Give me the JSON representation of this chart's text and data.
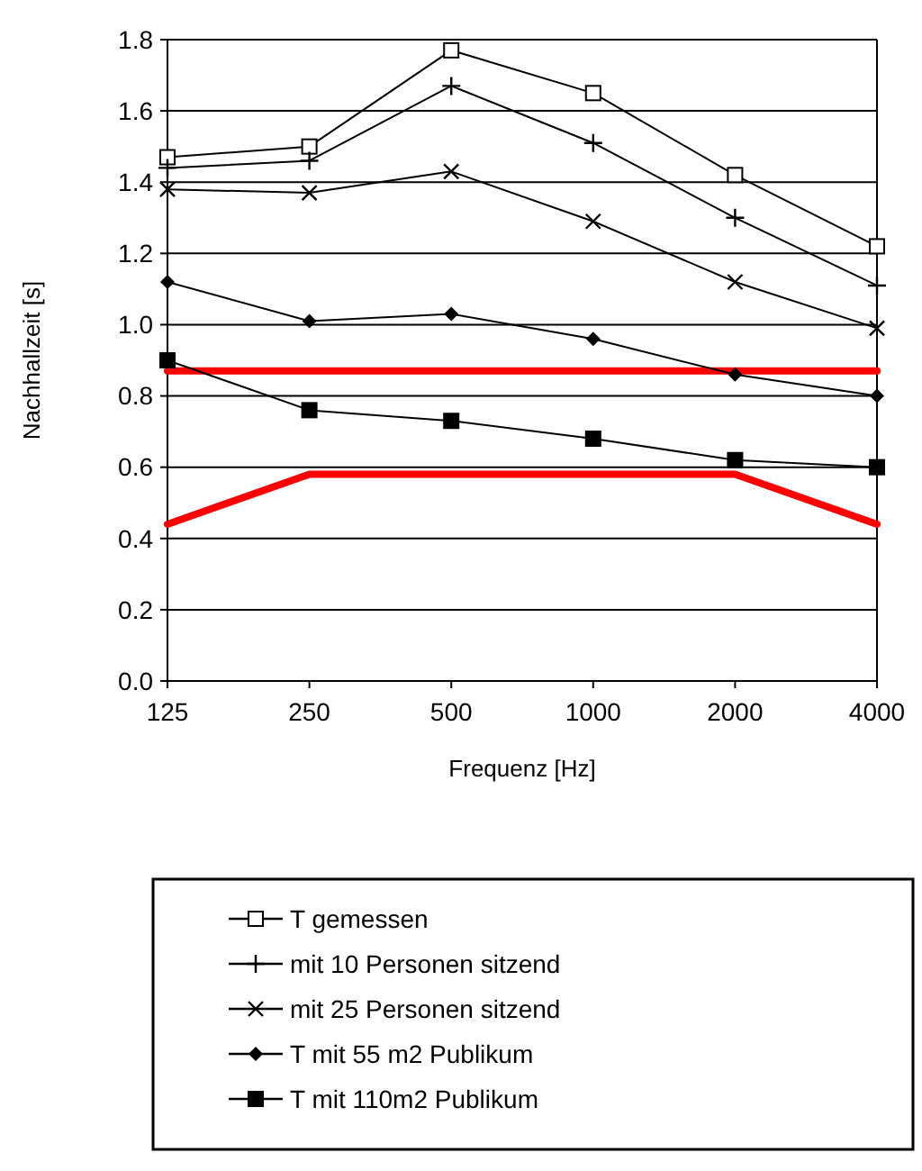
{
  "chart_data": {
    "type": "line",
    "xlabel": "Frequenz [Hz]",
    "ylabel": "Nachhallzeit [s]",
    "categories": [
      "125",
      "250",
      "500",
      "1000",
      "2000",
      "4000"
    ],
    "ylim": [
      0,
      1.8
    ],
    "yticks": [
      {
        "value": 0,
        "label": "0.0"
      },
      0.2,
      0.4,
      0.6,
      0.8,
      {
        "value": 1,
        "label": "1.0"
      },
      1.2,
      1.4,
      1.6,
      1.8
    ],
    "grid": "y",
    "legend": "bottom",
    "series": [
      {
        "name": "T gemessen",
        "color": "#000000",
        "marker": "square",
        "values": [
          1.47,
          1.5,
          1.77,
          1.65,
          1.42,
          1.22
        ]
      },
      {
        "name": "mit 10 Personen sitzend",
        "color": "#000000",
        "marker": "cross",
        "values": [
          1.44,
          1.46,
          1.67,
          1.51,
          1.3,
          1.11
        ]
      },
      {
        "name": "mit 25 Personen sitzend",
        "color": "#000000",
        "marker": "x",
        "values": [
          1.38,
          1.37,
          1.43,
          1.29,
          1.12,
          0.99
        ]
      },
      {
        "name": "T mit 55 m2 Publikum",
        "color": "#000000",
        "marker": "diamond",
        "values": [
          1.12,
          1.01,
          1.03,
          0.96,
          0.86,
          0.8
        ]
      },
      {
        "name": "T mit 110m2 Publikum",
        "color": "#000000",
        "marker": "square",
        "values": [
          0.9,
          0.76,
          0.73,
          0.68,
          0.62,
          0.6
        ]
      },
      {
        "color": "#ff0000",
        "marker": "none",
        "values": [
          0.87,
          0.87,
          0.87,
          0.87,
          0.87,
          0.87
        ]
      },
      {
        "color": "#ff0000",
        "marker": "none",
        "values": [
          0.44,
          0.58,
          0.58,
          0.58,
          0.58,
          0.44
        ]
      }
    ]
  }
}
